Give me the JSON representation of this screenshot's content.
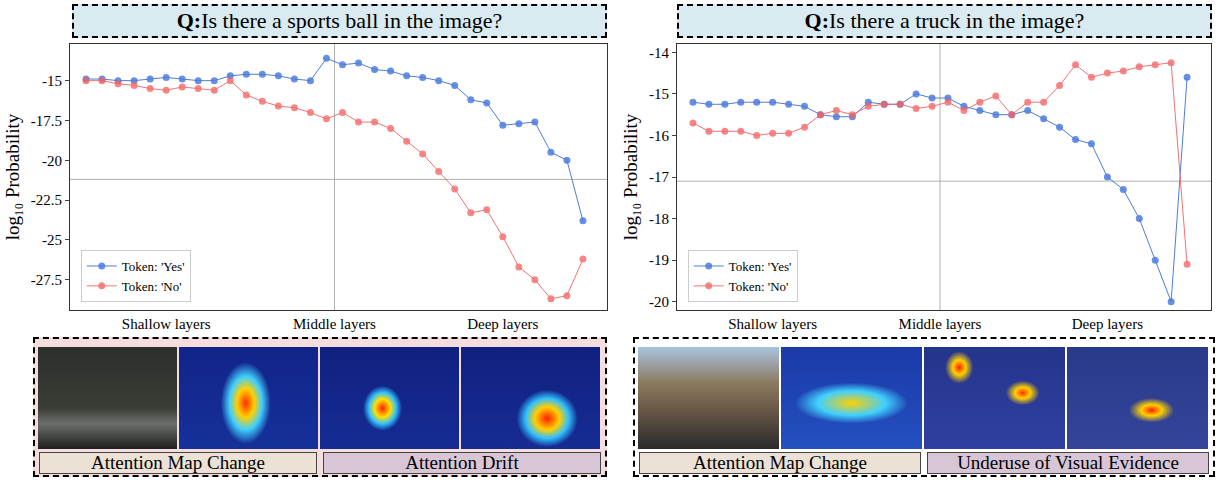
{
  "chart_data": [
    {
      "type": "line",
      "title": "Q:Is there a sports ball in the image?",
      "y_label": "log₁₀ Probability",
      "x": [
        0,
        1,
        2,
        3,
        4,
        5,
        6,
        7,
        8,
        9,
        10,
        11,
        12,
        13,
        14,
        15,
        16,
        17,
        18,
        19,
        20,
        21,
        22,
        23,
        24,
        25,
        26,
        27,
        28,
        29,
        30,
        31
      ],
      "xlim": [
        -1,
        32.5
      ],
      "xticks": [
        {
          "value": 5,
          "label": "Shallow layers"
        },
        {
          "value": 15.5,
          "label": "Middle layers"
        },
        {
          "value": 26,
          "label": "Deep layers"
        }
      ],
      "ylim": [
        -29.4,
        -12.7
      ],
      "yticks": [
        -15,
        -17.5,
        -20,
        -22.5,
        -25,
        -27.5
      ],
      "vline": 15.5,
      "hline": -21.2,
      "grid": false,
      "legend": "lower left",
      "marker": "circle",
      "series": [
        {
          "name": "Token: 'Yes'",
          "color": "#3b6fd9",
          "values": [
            -14.9,
            -14.9,
            -15.0,
            -15.0,
            -14.9,
            -14.8,
            -14.9,
            -15.0,
            -15.0,
            -14.7,
            -14.6,
            -14.6,
            -14.7,
            -14.9,
            -15.0,
            -13.6,
            -14.0,
            -13.9,
            -14.3,
            -14.4,
            -14.7,
            -14.8,
            -15.0,
            -15.3,
            -16.2,
            -16.4,
            -17.8,
            -17.7,
            -17.6,
            -19.5,
            -20.0,
            -23.8
          ]
        },
        {
          "name": "Token: 'No'",
          "color": "#f26464",
          "values": [
            -15.0,
            -15.0,
            -15.2,
            -15.3,
            -15.5,
            -15.6,
            -15.4,
            -15.5,
            -15.6,
            -15.0,
            -15.9,
            -16.3,
            -16.6,
            -16.7,
            -17.0,
            -17.4,
            -17.0,
            -17.6,
            -17.6,
            -18.0,
            -18.8,
            -19.6,
            -20.7,
            -21.8,
            -23.3,
            -23.1,
            -24.8,
            -26.7,
            -27.5,
            -28.7,
            -28.5,
            -26.2
          ]
        }
      ],
      "captions": [
        "Attention Map Change",
        "Attention Drift"
      ]
    },
    {
      "type": "line",
      "title": "Q:Is there a truck in the image?",
      "y_label": "log₁₀ Probability",
      "x": [
        0,
        1,
        2,
        3,
        4,
        5,
        6,
        7,
        8,
        9,
        10,
        11,
        12,
        13,
        14,
        15,
        16,
        17,
        18,
        19,
        20,
        21,
        22,
        23,
        24,
        25,
        26,
        27,
        28,
        29,
        30,
        31
      ],
      "xlim": [
        -1,
        32.5
      ],
      "xticks": [
        {
          "value": 5,
          "label": "Shallow layers"
        },
        {
          "value": 15.5,
          "label": "Middle layers"
        },
        {
          "value": 26,
          "label": "Deep layers"
        }
      ],
      "ylim": [
        -20.2,
        -13.8
      ],
      "yticks": [
        -14,
        -15,
        -16,
        -17,
        -18,
        -19,
        -20
      ],
      "vline": 15.5,
      "hline": -17.1,
      "grid": false,
      "legend": "lower left",
      "marker": "circle",
      "series": [
        {
          "name": "Token: 'Yes'",
          "color": "#3b6fd9",
          "values": [
            -15.2,
            -15.25,
            -15.25,
            -15.2,
            -15.2,
            -15.2,
            -15.25,
            -15.3,
            -15.5,
            -15.55,
            -15.55,
            -15.2,
            -15.25,
            -15.25,
            -15.0,
            -15.1,
            -15.1,
            -15.3,
            -15.4,
            -15.5,
            -15.5,
            -15.4,
            -15.6,
            -15.8,
            -16.1,
            -16.2,
            -17.0,
            -17.3,
            -18.0,
            -19.0,
            -20.0,
            -14.6
          ]
        },
        {
          "name": "Token: 'No'",
          "color": "#f26464",
          "values": [
            -15.7,
            -15.9,
            -15.9,
            -15.9,
            -16.0,
            -15.95,
            -15.95,
            -15.8,
            -15.5,
            -15.4,
            -15.5,
            -15.3,
            -15.25,
            -15.25,
            -15.35,
            -15.3,
            -15.2,
            -15.4,
            -15.2,
            -15.05,
            -15.5,
            -15.2,
            -15.2,
            -14.8,
            -14.3,
            -14.6,
            -14.5,
            -14.45,
            -14.35,
            -14.3,
            -14.25,
            -19.1
          ]
        }
      ],
      "captions": [
        "Attention Map Change",
        "Underuse of Visual Evidence"
      ]
    }
  ]
}
